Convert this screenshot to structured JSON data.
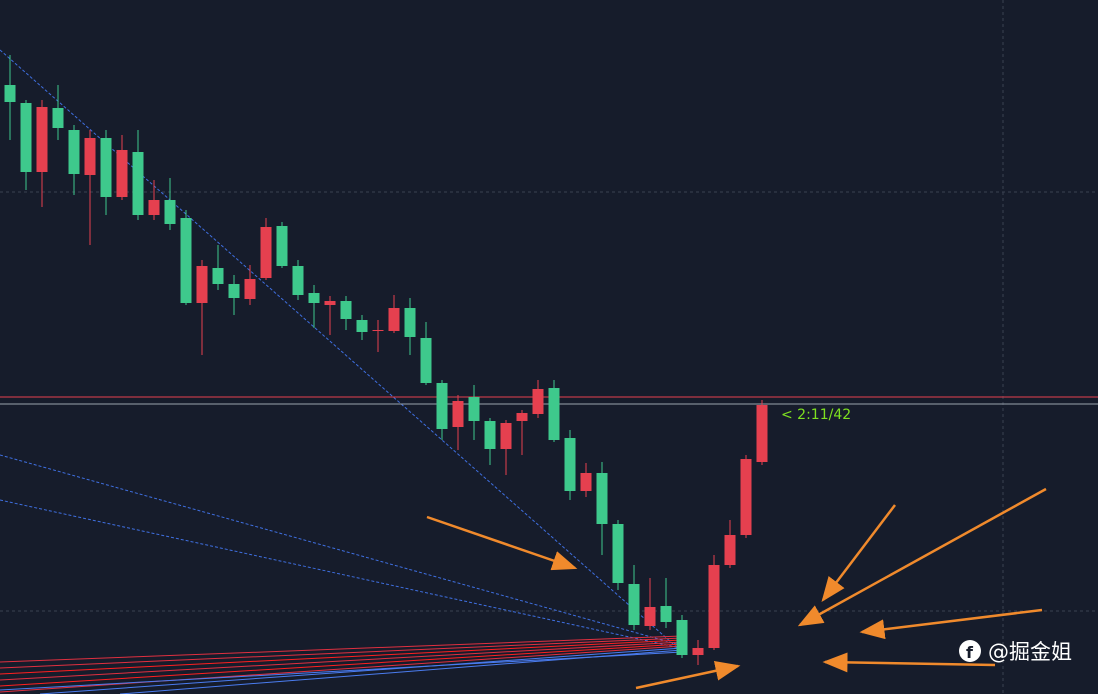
{
  "chart_data": {
    "type": "candlestick",
    "open": [
      60.9,
      59.1,
      52.2,
      58.6,
      56.4,
      51.9,
      55.6,
      49.7,
      54.2,
      47.9,
      49.4,
      47.6,
      39.1,
      42.6,
      41.0,
      39.5,
      41.6,
      46.8,
      42.8,
      40.1,
      38.9,
      39.3,
      37.4,
      36.3,
      36.3,
      38.6,
      35.6,
      31.1,
      26.7,
      29.7,
      27.3,
      24.5,
      27.3,
      28.0,
      30.6,
      25.6,
      20.3,
      22.1,
      17.0,
      11.0,
      6.8,
      8.8,
      7.4,
      3.9,
      4.6,
      12.9,
      15.9,
      23.2
    ],
    "high": [
      63.9,
      59.4,
      59.4,
      60.9,
      56.9,
      56.4,
      56.4,
      55.9,
      56.4,
      51.4,
      51.6,
      48.4,
      43.4,
      44.9,
      41.9,
      42.9,
      47.6,
      47.2,
      43.4,
      40.9,
      39.8,
      39.8,
      37.9,
      37.4,
      39.9,
      39.6,
      37.2,
      31.4,
      29.9,
      30.9,
      27.6,
      27.4,
      28.4,
      31.4,
      31.4,
      26.4,
      23.1,
      23.2,
      17.4,
      12.9,
      11.6,
      11.6,
      7.9,
      5.4,
      13.9,
      17.4,
      23.9,
      29.4
    ],
    "low": [
      55.4,
      50.4,
      48.7,
      55.4,
      49.9,
      44.9,
      47.9,
      49.4,
      47.4,
      47.4,
      46.4,
      38.9,
      33.9,
      40.4,
      37.9,
      38.9,
      41.4,
      42.6,
      39.4,
      36.6,
      35.9,
      36.4,
      35.4,
      34.2,
      36.1,
      33.9,
      30.9,
      25.4,
      24.4,
      25.4,
      22.9,
      21.9,
      23.9,
      27.6,
      25.2,
      19.4,
      19.7,
      13.9,
      10.4,
      6.4,
      6.4,
      6.6,
      3.6,
      2.9,
      4.4,
      12.6,
      15.6,
      22.9
    ],
    "close": [
      59.2,
      52.2,
      58.7,
      56.6,
      52.0,
      55.6,
      49.7,
      54.4,
      47.9,
      49.4,
      47.0,
      39.1,
      42.8,
      41.0,
      39.6,
      41.5,
      46.7,
      42.8,
      39.9,
      39.1,
      39.3,
      37.5,
      36.2,
      36.4,
      38.6,
      35.7,
      31.1,
      26.5,
      29.3,
      27.3,
      24.5,
      27.1,
      28.1,
      30.5,
      25.4,
      20.3,
      22.1,
      17.0,
      11.1,
      6.9,
      8.7,
      7.2,
      3.9,
      4.6,
      12.9,
      15.9,
      23.5,
      28.9
    ],
    "up_color": "#e5404f",
    "down_color": "#3ec98c",
    "ylim": [
      0,
      69.4
    ],
    "levels": [
      {
        "value": 29.7,
        "color": "#e5404f"
      },
      {
        "value": 29.0,
        "color": "#9aa3ad"
      }
    ],
    "annotation": "< 2:11/42",
    "watermark": "@掘金姐"
  }
}
